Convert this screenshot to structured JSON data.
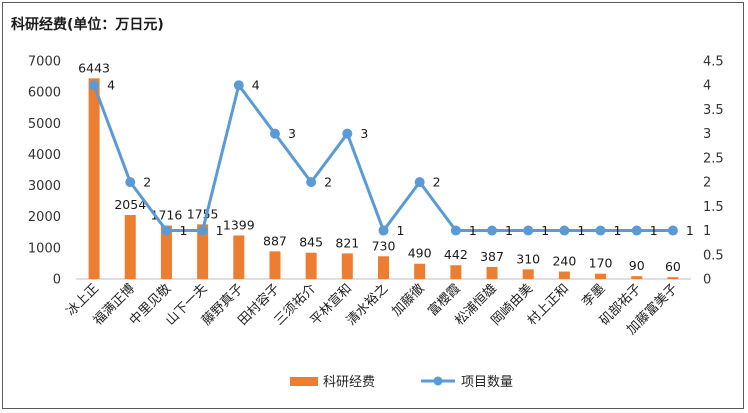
{
  "chart_data": {
    "type": "bar",
    "ylabel": "科研经费(单位：万日元)",
    "categories": [
      "冰上正",
      "福满正博",
      "中里见敬",
      "山下一夫",
      "藤野真子",
      "田村容子",
      "三须祐介",
      "平林宣和",
      "清水裕之",
      "加藤徹",
      "富櫻霞",
      "松浦恒雄",
      "岡崎由美",
      "村上正和",
      "李墨",
      "矶部祐子",
      "加藤富美子"
    ],
    "series": [
      {
        "name": "科研经费",
        "type": "bar",
        "axis": "left",
        "color": "#ED7D31",
        "values": [
          6443,
          2054,
          1716,
          1755,
          1399,
          887,
          845,
          821,
          730,
          490,
          442,
          387,
          310,
          240,
          170,
          90,
          60
        ],
        "labels": [
          "6443",
          "2054",
          "1716",
          "1755",
          "1399",
          "887",
          "845",
          "821",
          "730",
          "490",
          "442",
          "387",
          "310",
          "240",
          "170",
          "90",
          "60"
        ]
      },
      {
        "name": "项目数量",
        "type": "line",
        "axis": "right",
        "color": "#5B9BD5",
        "values": [
          4,
          2,
          1,
          1,
          4,
          3,
          2,
          3,
          1,
          2,
          1,
          1,
          1,
          1,
          1,
          1,
          1
        ],
        "labels": [
          "4",
          "2",
          "1",
          "1",
          "4",
          "3",
          "2",
          "3",
          "1",
          "2",
          "1",
          "1",
          "1",
          "1",
          "1",
          "1",
          "1"
        ]
      }
    ],
    "left_axis": {
      "min": 0,
      "max": 7000,
      "ticks": [
        "0",
        "1000",
        "2000",
        "3000",
        "4000",
        "5000",
        "6000",
        "7000"
      ]
    },
    "right_axis": {
      "min": 0,
      "max": 4.5,
      "ticks": [
        "0",
        "0.5",
        "1",
        "1.5",
        "2",
        "2.5",
        "3",
        "3.5",
        "4",
        "4.5"
      ]
    },
    "grid": false,
    "legend": "bottom"
  }
}
